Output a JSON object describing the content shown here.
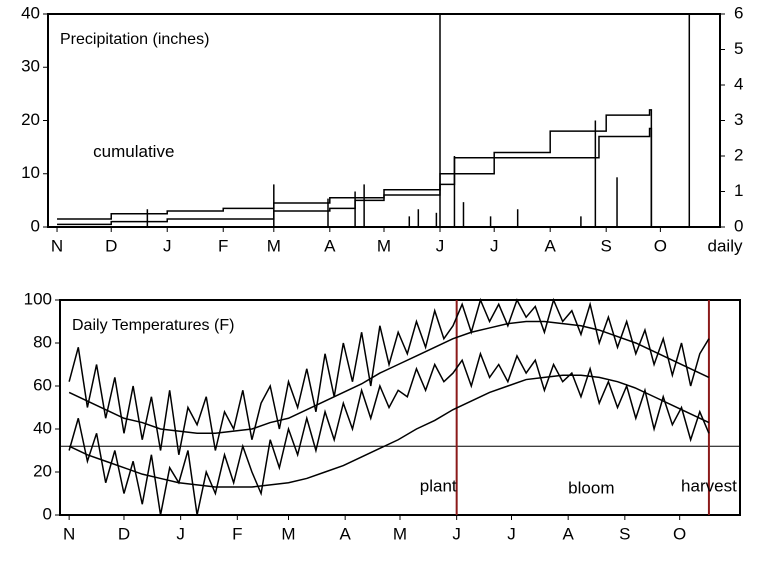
{
  "chart_data": [
    {
      "type": "line",
      "title": "Precipitation (inches)",
      "annotations": [
        {
          "text": "cumulative",
          "x": 20,
          "y": 14
        }
      ],
      "y2label": "daily",
      "xlim": [
        -5,
        367
      ],
      "xticks": [
        {
          "value": 0,
          "label": "N"
        },
        {
          "value": 30,
          "label": "D"
        },
        {
          "value": 61,
          "label": "J"
        },
        {
          "value": 92,
          "label": "F"
        },
        {
          "value": 120,
          "label": "M"
        },
        {
          "value": 151,
          "label": "A"
        },
        {
          "value": 181,
          "label": "M"
        },
        {
          "value": 212,
          "label": "J"
        },
        {
          "value": 242,
          "label": "J"
        },
        {
          "value": 273,
          "label": "A"
        },
        {
          "value": 304,
          "label": "S"
        },
        {
          "value": 334,
          "label": "O"
        }
      ],
      "ylim": [
        0,
        40
      ],
      "yticks": [
        0,
        10,
        20,
        30,
        40
      ],
      "y2lim": [
        0,
        6
      ],
      "y2ticks": [
        0,
        1,
        2,
        3,
        4,
        5,
        6
      ],
      "series": [
        {
          "color": "#000000",
          "step": true,
          "x": [
            0,
            30,
            61,
            92,
            120,
            151,
            181,
            212,
            242,
            273,
            304,
            328,
            329
          ],
          "values": [
            1.5,
            2.5,
            3,
            3.5,
            4.5,
            5.5,
            7,
            10,
            14,
            18,
            21,
            22,
            0
          ]
        },
        {
          "color": "#000000",
          "step": true,
          "x": [
            0,
            30,
            61,
            92,
            120,
            151,
            165,
            181,
            212,
            220,
            242,
            298,
            300,
            328,
            329
          ],
          "values": [
            0.5,
            1,
            1.5,
            1.5,
            3,
            3.5,
            5,
            6,
            8,
            13,
            13,
            13,
            17,
            18.5,
            0
          ]
        },
        {
          "color": "#000000",
          "axis": "y2",
          "spike": true,
          "x": [
            50,
            120,
            150,
            165,
            170,
            195,
            200,
            210,
            212,
            220,
            225,
            240,
            255,
            290,
            298,
            310,
            350
          ],
          "values": [
            0.5,
            1.2,
            0.8,
            1,
            1.2,
            0.3,
            0.5,
            0.4,
            6,
            2,
            0.7,
            0.3,
            0.5,
            0.3,
            3,
            1.4,
            6
          ]
        }
      ]
    },
    {
      "type": "line",
      "title": "Daily Temperatures (F)",
      "xlim": [
        -5,
        367
      ],
      "xticks": [
        {
          "value": 0,
          "label": "N"
        },
        {
          "value": 30,
          "label": "D"
        },
        {
          "value": 61,
          "label": "J"
        },
        {
          "value": 92,
          "label": "F"
        },
        {
          "value": 120,
          "label": "M"
        },
        {
          "value": 151,
          "label": "A"
        },
        {
          "value": 181,
          "label": "M"
        },
        {
          "value": 212,
          "label": "J"
        },
        {
          "value": 242,
          "label": "J"
        },
        {
          "value": 273,
          "label": "A"
        },
        {
          "value": 304,
          "label": "S"
        },
        {
          "value": 334,
          "label": "O"
        }
      ],
      "ylim": [
        0,
        100
      ],
      "yticks": [
        0,
        20,
        40,
        60,
        80,
        100
      ],
      "hline": 32,
      "markers": [
        {
          "x": 212,
          "label": "plant",
          "color": "#8b1a1a"
        },
        {
          "x": 350,
          "label": "harvest",
          "color": "#8b1a1a"
        }
      ],
      "annotations": [
        {
          "text": "bloom",
          "x": 273,
          "y": 12
        }
      ],
      "series": [
        {
          "color": "#000000",
          "x": [
            0,
            5,
            10,
            15,
            20,
            25,
            30,
            35,
            40,
            45,
            50,
            55,
            60,
            65,
            70,
            75,
            80,
            85,
            90,
            95,
            100,
            105,
            110,
            115,
            120,
            125,
            130,
            135,
            140,
            145,
            150,
            155,
            160,
            165,
            170,
            175,
            180,
            185,
            190,
            195,
            200,
            205,
            210,
            215,
            220,
            225,
            230,
            235,
            240,
            245,
            250,
            255,
            260,
            265,
            270,
            275,
            280,
            285,
            290,
            295,
            300,
            305,
            310,
            315,
            320,
            325,
            330,
            335,
            340,
            345,
            350
          ],
          "values": [
            62,
            78,
            50,
            70,
            45,
            64,
            38,
            60,
            35,
            55,
            30,
            58,
            28,
            50,
            42,
            55,
            30,
            48,
            40,
            58,
            35,
            52,
            60,
            40,
            62,
            50,
            68,
            48,
            75,
            55,
            80,
            62,
            85,
            60,
            88,
            70,
            85,
            75,
            90,
            78,
            95,
            82,
            88,
            98,
            85,
            100,
            90,
            98,
            88,
            100,
            92,
            97,
            85,
            100,
            90,
            95,
            84,
            98,
            80,
            92,
            78,
            90,
            75,
            86,
            70,
            82,
            65,
            80,
            60,
            75,
            82
          ]
        },
        {
          "color": "#000000",
          "x": [
            0,
            5,
            10,
            15,
            20,
            25,
            30,
            35,
            40,
            45,
            50,
            55,
            60,
            65,
            70,
            75,
            80,
            85,
            90,
            95,
            100,
            105,
            110,
            115,
            120,
            125,
            130,
            135,
            140,
            145,
            150,
            155,
            160,
            165,
            170,
            175,
            180,
            185,
            190,
            195,
            200,
            205,
            210,
            215,
            220,
            225,
            230,
            235,
            240,
            245,
            250,
            255,
            260,
            265,
            270,
            275,
            280,
            285,
            290,
            295,
            300,
            305,
            310,
            315,
            320,
            325,
            330,
            335,
            340,
            345,
            350
          ],
          "values": [
            30,
            45,
            25,
            38,
            15,
            30,
            10,
            25,
            5,
            28,
            0,
            22,
            15,
            30,
            0,
            20,
            10,
            28,
            15,
            32,
            20,
            10,
            35,
            22,
            40,
            28,
            45,
            30,
            48,
            35,
            52,
            40,
            58,
            45,
            60,
            50,
            58,
            55,
            68,
            58,
            70,
            62,
            66,
            72,
            60,
            75,
            64,
            70,
            62,
            74,
            66,
            72,
            58,
            70,
            62,
            66,
            55,
            68,
            52,
            62,
            50,
            60,
            45,
            58,
            40,
            55,
            42,
            50,
            35,
            48,
            38
          ]
        },
        {
          "color": "#000000",
          "x": [
            0,
            10,
            20,
            30,
            40,
            50,
            60,
            70,
            80,
            90,
            100,
            110,
            120,
            130,
            140,
            150,
            160,
            170,
            180,
            190,
            200,
            210,
            220,
            230,
            240,
            250,
            260,
            270,
            280,
            290,
            300,
            310,
            320,
            330,
            340,
            350
          ],
          "values": [
            57,
            53,
            49,
            45,
            43,
            40,
            39,
            38,
            38,
            39,
            40,
            43,
            45,
            49,
            53,
            57,
            61,
            66,
            70,
            74,
            78,
            82,
            85,
            87,
            89,
            90,
            90,
            89,
            88,
            86,
            83,
            80,
            76,
            72,
            68,
            64
          ]
        },
        {
          "color": "#000000",
          "x": [
            0,
            10,
            20,
            30,
            40,
            50,
            60,
            70,
            80,
            90,
            100,
            110,
            120,
            130,
            140,
            150,
            160,
            170,
            180,
            190,
            200,
            210,
            220,
            230,
            240,
            250,
            260,
            270,
            280,
            290,
            300,
            310,
            320,
            330,
            340,
            350
          ],
          "values": [
            32,
            28,
            25,
            22,
            19,
            17,
            15,
            14,
            13,
            13,
            13,
            14,
            15,
            17,
            20,
            23,
            27,
            31,
            35,
            40,
            44,
            49,
            53,
            57,
            60,
            63,
            64,
            65,
            65,
            64,
            62,
            59,
            55,
            51,
            47,
            43
          ]
        }
      ]
    }
  ]
}
